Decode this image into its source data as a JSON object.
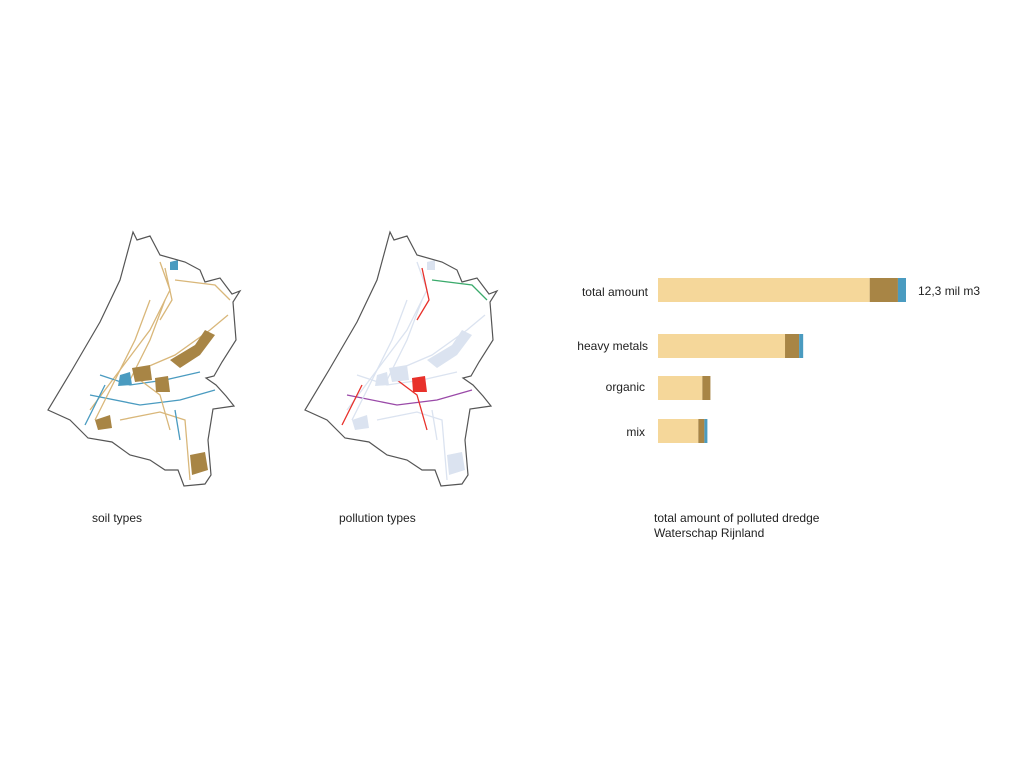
{
  "maps": [
    {
      "caption": "soil types",
      "colors": {
        "outline": "#555555",
        "sand": "#d9b77a",
        "clay": "#a88545",
        "peat": "#4a9bc0"
      }
    },
    {
      "caption": "pollution types",
      "colors": {
        "outline": "#555555",
        "network": "#dbe3f0",
        "heavy_metals": "#e8312b",
        "organic": "#3aaa6b",
        "mix": "#9a4aa8"
      }
    }
  ],
  "chart_data": {
    "type": "bar",
    "orientation": "horizontal",
    "stacked": true,
    "categories": [
      "total amount",
      "heavy metals",
      "organic",
      "mix"
    ],
    "series": [
      {
        "color": "#f5d79a",
        "values": [
          10.5,
          6.3,
          2.2,
          2.0
        ]
      },
      {
        "color": "#a88545",
        "values": [
          1.4,
          0.7,
          0.4,
          0.3
        ]
      },
      {
        "color": "#4a9bc0",
        "values": [
          0.4,
          0.2,
          0.0,
          0.15
        ]
      }
    ],
    "unit": "mil m3",
    "annotation": "12,3 mil m3",
    "title": "total amount of polluted dredge",
    "subtitle": "Waterschap Rijnland"
  }
}
